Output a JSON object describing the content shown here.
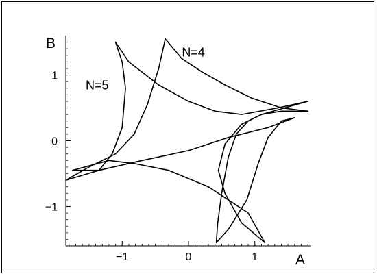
{
  "chart_data": {
    "type": "line",
    "title": "",
    "xlabel": "A",
    "ylabel": "B",
    "xlim": [
      -1.85,
      1.85
    ],
    "ylim": [
      -1.6,
      1.6
    ],
    "x_ticks": [
      {
        "value": -1,
        "label": "−1"
      },
      {
        "value": 0,
        "label": "0"
      },
      {
        "value": 1,
        "label": "1"
      }
    ],
    "y_ticks": [
      {
        "value": 1,
        "label": "1"
      },
      {
        "value": 0,
        "label": "0"
      },
      {
        "value": -1,
        "label": "−1"
      }
    ],
    "grid": false,
    "legend": "none",
    "annotations": [
      {
        "text": "N=4",
        "x": -0.1,
        "y": 1.28
      },
      {
        "text": "N=5",
        "x": -1.55,
        "y": 0.78
      }
    ],
    "series": [
      {
        "curve": "N=4",
        "x": [
          -0.35,
          -0.45,
          -0.62,
          -0.82,
          -1.1,
          -1.5,
          -1.85,
          -1.35,
          -0.7,
          0,
          0.6,
          1.2,
          1.6,
          1.4,
          1.2,
          1.05,
          0.88,
          0.6,
          0.42,
          0.44,
          0.5,
          0.6,
          0.72,
          0.9,
          1.1,
          1.4,
          1.8,
          1.4,
          0.95,
          0.55,
          0.2,
          -0.1,
          -0.35
        ],
        "y": [
          1.55,
          1.1,
          0.55,
          0.1,
          -0.2,
          -0.4,
          -0.6,
          -0.45,
          -0.3,
          -0.15,
          0.05,
          0.2,
          0.35,
          0.3,
          0.05,
          -0.35,
          -0.9,
          -1.35,
          -1.55,
          -1.25,
          -0.8,
          -0.25,
          0.1,
          0.3,
          0.4,
          0.45,
          0.45,
          0.5,
          0.65,
          0.85,
          1.05,
          1.25,
          1.55
        ]
      },
      {
        "curve": "N=5",
        "x": [
          -1.1,
          -1.0,
          -0.95,
          -1.0,
          -1.15,
          -1.35,
          -1.75,
          -1.2,
          -0.8,
          -0.3,
          0.3,
          0.9,
          1.15,
          0.8,
          0.55,
          0.45,
          0.55,
          0.8,
          1.1,
          1.45,
          1.8,
          1.35,
          0.8,
          0.4,
          0,
          -0.45,
          -0.9,
          -1.1
        ],
        "y": [
          1.5,
          1.2,
          0.8,
          0.2,
          -0.2,
          -0.45,
          -0.45,
          -0.3,
          -0.35,
          -0.45,
          -0.7,
          -1.1,
          -1.55,
          -1.25,
          -0.8,
          -0.45,
          -0.05,
          0.25,
          0.4,
          0.5,
          0.6,
          0.5,
          0.4,
          0.45,
          0.6,
          0.85,
          1.2,
          1.5
        ]
      }
    ]
  }
}
